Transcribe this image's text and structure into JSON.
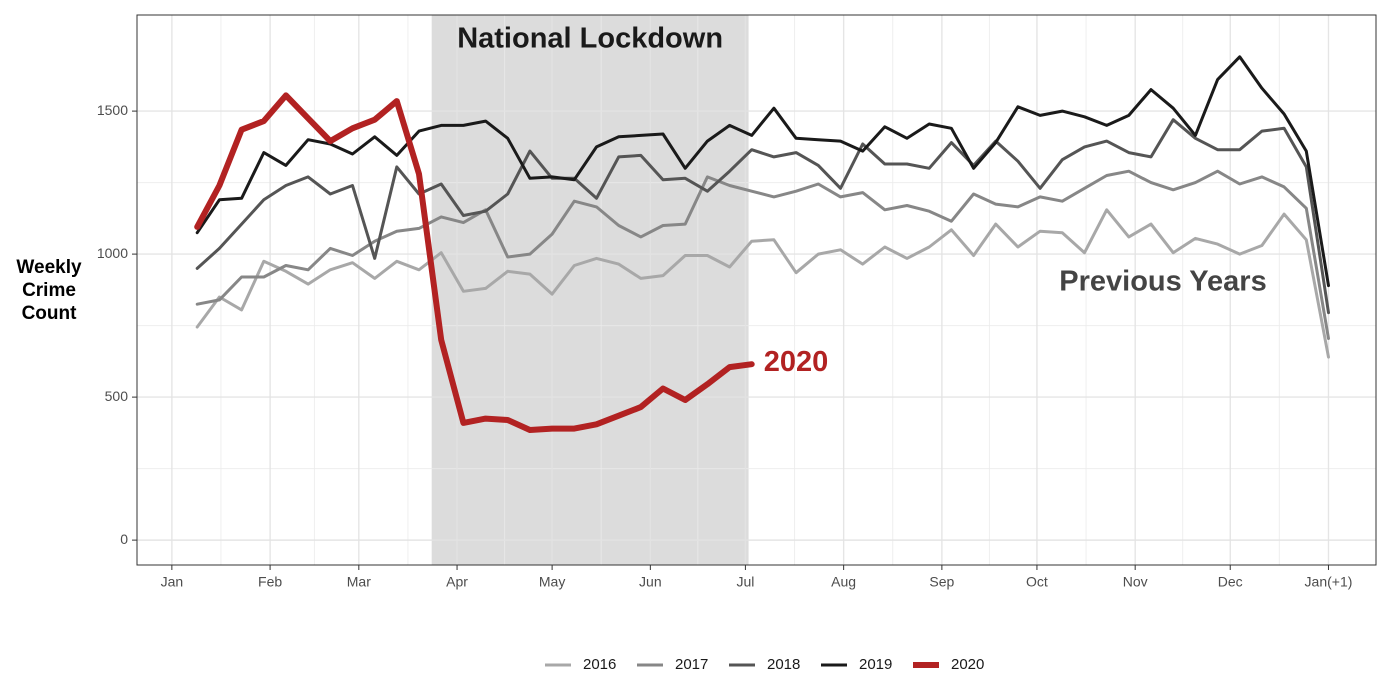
{
  "chart_data": {
    "type": "line",
    "ylabel": "Weekly Crime Count",
    "annotations": {
      "lockdown": "National Lockdown",
      "previous": "Previous Years"
    },
    "lockdown": [
      82,
      182
    ],
    "xlim": [
      -11,
      380
    ],
    "ylim": [
      -87,
      1836
    ],
    "xticks": [
      {
        "value": 0,
        "label": "Jan"
      },
      {
        "value": 31,
        "label": "Feb"
      },
      {
        "value": 59,
        "label": "Mar"
      },
      {
        "value": 90,
        "label": "Apr"
      },
      {
        "value": 120,
        "label": "May"
      },
      {
        "value": 151,
        "label": "Jun"
      },
      {
        "value": 181,
        "label": "Jul"
      },
      {
        "value": 212,
        "label": "Aug"
      },
      {
        "value": 243,
        "label": "Sep"
      },
      {
        "value": 273,
        "label": "Oct"
      },
      {
        "value": 304,
        "label": "Nov"
      },
      {
        "value": 334,
        "label": "Dec"
      },
      {
        "value": 365,
        "label": "Jan(+1)"
      }
    ],
    "yticks": [
      0,
      500,
      1000,
      1500
    ],
    "grid": true,
    "legend": "bottom",
    "x": [
      8,
      15,
      22,
      29,
      36,
      43,
      50,
      57,
      64,
      71,
      78,
      85,
      92,
      99,
      106,
      113,
      120,
      127,
      134,
      141,
      148,
      155,
      162,
      169,
      176,
      183,
      190,
      197,
      204,
      211,
      218,
      225,
      232,
      239,
      246,
      253,
      260,
      267,
      274,
      281,
      288,
      295,
      302,
      309,
      316,
      323,
      330,
      337,
      344,
      351,
      358,
      365
    ],
    "series": [
      {
        "name": "2016",
        "color": "#a8a8a8",
        "width": 3,
        "values": [
          745,
          850,
          805,
          975,
          940,
          895,
          945,
          970,
          915,
          975,
          945,
          1005,
          870,
          880,
          940,
          930,
          860,
          960,
          985,
          965,
          915,
          925,
          995,
          995,
          955,
          1045,
          1050,
          935,
          1000,
          1015,
          965,
          1025,
          985,
          1025,
          1085,
          995,
          1105,
          1025,
          1080,
          1075,
          1005,
          1155,
          1060,
          1105,
          1005,
          1055,
          1035,
          1000,
          1030,
          1140,
          1050,
          640
        ]
      },
      {
        "name": "2017",
        "color": "#878787",
        "width": 3,
        "values": [
          825,
          840,
          920,
          920,
          960,
          945,
          1020,
          995,
          1045,
          1080,
          1090,
          1130,
          1110,
          1155,
          990,
          1000,
          1070,
          1185,
          1165,
          1100,
          1060,
          1100,
          1105,
          1270,
          1240,
          1220,
          1200,
          1220,
          1245,
          1200,
          1215,
          1155,
          1170,
          1150,
          1115,
          1210,
          1175,
          1165,
          1200,
          1185,
          1230,
          1275,
          1290,
          1250,
          1225,
          1250,
          1290,
          1245,
          1270,
          1235,
          1160,
          705
        ]
      },
      {
        "name": "2018",
        "color": "#555555",
        "width": 3,
        "values": [
          950,
          1020,
          1105,
          1190,
          1240,
          1270,
          1210,
          1240,
          985,
          1305,
          1210,
          1245,
          1135,
          1150,
          1210,
          1360,
          1265,
          1265,
          1195,
          1340,
          1345,
          1260,
          1265,
          1220,
          1290,
          1365,
          1340,
          1355,
          1310,
          1230,
          1385,
          1315,
          1315,
          1300,
          1390,
          1310,
          1395,
          1325,
          1230,
          1330,
          1375,
          1395,
          1355,
          1340,
          1470,
          1405,
          1365,
          1365,
          1430,
          1440,
          1305,
          795
        ]
      },
      {
        "name": "2019",
        "color": "#1a1a1a",
        "width": 3,
        "values": [
          1075,
          1190,
          1195,
          1355,
          1310,
          1400,
          1385,
          1350,
          1410,
          1345,
          1430,
          1450,
          1450,
          1465,
          1405,
          1265,
          1270,
          1260,
          1375,
          1410,
          1415,
          1420,
          1300,
          1395,
          1450,
          1415,
          1510,
          1405,
          1400,
          1395,
          1360,
          1445,
          1405,
          1455,
          1440,
          1300,
          1390,
          1515,
          1485,
          1500,
          1480,
          1450,
          1485,
          1575,
          1510,
          1415,
          1610,
          1690,
          1580,
          1490,
          1360,
          890
        ]
      },
      {
        "name": "2020",
        "color": "#b22222",
        "width": 6,
        "values": [
          1095,
          1240,
          1435,
          1465,
          1555,
          1475,
          1395,
          1440,
          1470,
          1535,
          1280,
          700,
          410,
          425,
          420,
          385,
          390,
          390,
          405,
          435,
          465,
          530,
          490,
          545,
          605,
          615,
          null,
          null,
          null,
          null,
          null,
          null,
          null,
          null,
          null,
          null,
          null,
          null,
          null,
          null,
          null,
          null,
          null,
          null,
          null,
          null,
          null,
          null,
          null,
          null,
          null,
          null
        ]
      }
    ]
  }
}
